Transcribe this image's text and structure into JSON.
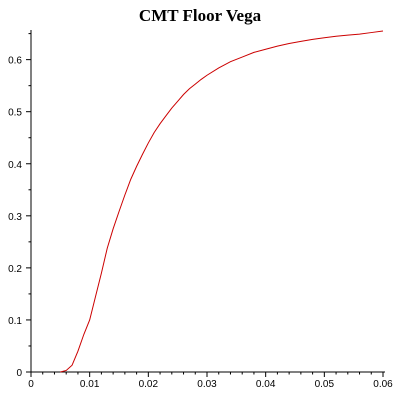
{
  "chart_data": {
    "type": "line",
    "title": "CMT Floor Vega",
    "xlabel": "",
    "ylabel": "",
    "xlim": [
      0,
      0.06
    ],
    "ylim": [
      0,
      0.655
    ],
    "x_ticks": [
      "0",
      "0.01",
      "0.02",
      "0.03",
      "0.04",
      "0.05",
      "0.06"
    ],
    "y_ticks": [
      "0",
      "0.1",
      "0.2",
      "0.3",
      "0.4",
      "0.5",
      "0.6"
    ],
    "grid": false,
    "line_color": "#cc0000",
    "series": [
      {
        "x": [
          0.005,
          0.006,
          0.007,
          0.008,
          0.009,
          0.01,
          0.011,
          0.012,
          0.013,
          0.014,
          0.015,
          0.016,
          0.017,
          0.018,
          0.019,
          0.02,
          0.021,
          0.022,
          0.023,
          0.024,
          0.025,
          0.026,
          0.027,
          0.028,
          0.029,
          0.03,
          0.032,
          0.034,
          0.036,
          0.038,
          0.04,
          0.042,
          0.044,
          0.046,
          0.048,
          0.05,
          0.052,
          0.054,
          0.056,
          0.058,
          0.06
        ],
        "y": [
          0.0,
          0.003,
          0.013,
          0.04,
          0.072,
          0.1,
          0.145,
          0.19,
          0.238,
          0.275,
          0.308,
          0.34,
          0.37,
          0.395,
          0.418,
          0.44,
          0.46,
          0.477,
          0.492,
          0.507,
          0.52,
          0.533,
          0.544,
          0.553,
          0.562,
          0.57,
          0.584,
          0.596,
          0.605,
          0.614,
          0.62,
          0.626,
          0.631,
          0.635,
          0.639,
          0.642,
          0.645,
          0.647,
          0.649,
          0.652,
          0.655
        ]
      }
    ]
  }
}
